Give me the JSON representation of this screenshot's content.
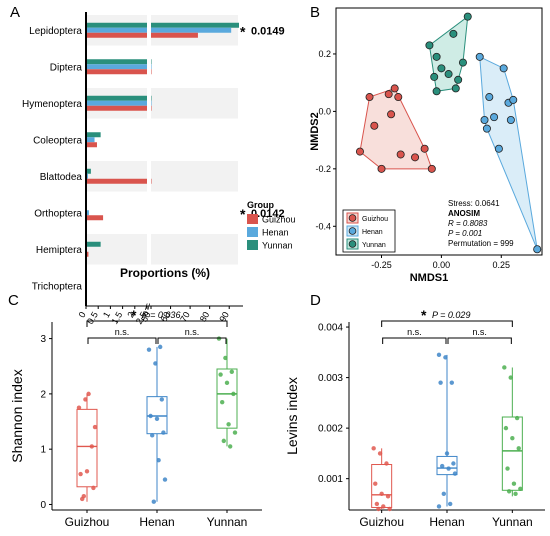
{
  "colors": {
    "guizhou": "#d9544d",
    "henan": "#5aa9dd",
    "yunnan": "#2a8f7c",
    "guizhou_box": "#e0584f",
    "henan_box": "#3f86c8",
    "yunnan_box": "#4caf50",
    "band": "#f2f2f2"
  },
  "panel_labels": [
    "A",
    "B",
    "C",
    "D"
  ],
  "chart_data": [
    {
      "panel": "A",
      "type": "bar",
      "orientation": "horizontal",
      "categories": [
        "Lepidoptera",
        "Diptera",
        "Hymenoptera",
        "Coleoptera",
        "Blattodea",
        "Orthoptera",
        "Hemiptera",
        "Trichoptera"
      ],
      "series": [
        {
          "name": "Guizhou",
          "values": [
            74,
            19,
            6,
            0.45,
            3.6,
            0.7,
            0.1,
            0.03
          ]
        },
        {
          "name": "Henan",
          "values": [
            91,
            20,
            7,
            0.35,
            0.08,
            0.12,
            0.02,
            0.01
          ]
        },
        {
          "name": "Yunnan",
          "values": [
            95,
            16,
            7,
            0.6,
            0.2,
            0.04,
            0.6,
            0.01
          ]
        }
      ],
      "xlabel": "Proportions (%)",
      "x_ticks_low": [
        "0",
        "0.5",
        "1",
        "1.5",
        "2",
        "2.5"
      ],
      "x_ticks_high": [
        "50",
        "60",
        "70",
        "80",
        "90"
      ],
      "x_break": [
        2.5,
        50
      ],
      "legend_title": "Group",
      "legend": [
        "Guizhou",
        "Henan",
        "Yunnan"
      ],
      "annotations": [
        {
          "category": "Lepidoptera",
          "text": "0.0149"
        },
        {
          "category": "Orthoptera",
          "text": "0.0142"
        }
      ],
      "annotation_symbol": "*"
    },
    {
      "panel": "B",
      "type": "scatter",
      "xlabel": "NMDS1",
      "ylabel": "NMDS2",
      "x_ticks": [
        "-0.25",
        "0.00",
        "0.25"
      ],
      "y_ticks": [
        "-0.4",
        "-0.2",
        "0.0",
        "0.2"
      ],
      "xlim": [
        -0.44,
        0.42
      ],
      "ylim": [
        -0.5,
        0.36
      ],
      "series": [
        {
          "name": "Guizhou",
          "points": [
            [
              -0.3,
              0.05
            ],
            [
              -0.22,
              0.06
            ],
            [
              -0.21,
              -0.01
            ],
            [
              -0.195,
              0.08
            ],
            [
              -0.17,
              -0.15
            ],
            [
              -0.28,
              -0.05
            ],
            [
              -0.25,
              -0.2
            ],
            [
              -0.11,
              -0.16
            ],
            [
              -0.07,
              -0.13
            ],
            [
              -0.04,
              -0.2
            ],
            [
              -0.34,
              -0.14
            ],
            [
              -0.18,
              0.05
            ]
          ]
        },
        {
          "name": "Henan",
          "points": [
            [
              0.16,
              0.19
            ],
            [
              0.26,
              0.15
            ],
            [
              0.2,
              0.05
            ],
            [
              0.22,
              -0.02
            ],
            [
              0.28,
              0.03
            ],
            [
              0.29,
              -0.03
            ],
            [
              0.3,
              0.04
            ],
            [
              0.19,
              -0.06
            ],
            [
              0.24,
              -0.13
            ],
            [
              0.18,
              -0.03
            ],
            [
              0.4,
              -0.48
            ]
          ]
        },
        {
          "name": "Yunnan",
          "points": [
            [
              -0.05,
              0.23
            ],
            [
              -0.02,
              0.19
            ],
            [
              0.05,
              0.27
            ],
            [
              0.11,
              0.33
            ],
            [
              0.09,
              0.17
            ],
            [
              0.0,
              0.15
            ],
            [
              0.03,
              0.13
            ],
            [
              0.06,
              0.08
            ],
            [
              -0.02,
              0.07
            ],
            [
              0.07,
              0.11
            ],
            [
              -0.03,
              0.12
            ]
          ]
        }
      ],
      "legend": [
        "Guizhou",
        "Henan",
        "Yunnan"
      ],
      "stats": [
        "Stress: 0.0641",
        "ANOSIM",
        "R = 0.8083",
        "P = 0.001",
        "Permutation = 999"
      ]
    },
    {
      "panel": "C",
      "type": "box",
      "categories": [
        "Guizhou",
        "Henan",
        "Yunnan"
      ],
      "ylabel": "Shannon index",
      "y_ticks": [
        "0",
        "1",
        "2",
        "3"
      ],
      "ylim": [
        -0.1,
        3.3
      ],
      "boxes": [
        {
          "name": "Guizhou",
          "q1": 0.32,
          "median": 1.05,
          "q3": 1.72,
          "min": 0.05,
          "max": 2.0
        },
        {
          "name": "Henan",
          "q1": 1.28,
          "median": 1.6,
          "q3": 1.95,
          "min": 0.05,
          "max": 2.85
        },
        {
          "name": "Yunnan",
          "q1": 1.38,
          "median": 2.0,
          "q3": 2.45,
          "min": 1.05,
          "max": 3.0
        }
      ],
      "points": [
        [
          1.75,
          1.9,
          1.05,
          0.55,
          0.6,
          0.3,
          0.1,
          2.0,
          1.4,
          0.15
        ],
        [
          2.8,
          2.55,
          1.9,
          1.6,
          1.55,
          1.3,
          1.25,
          0.8,
          0.45,
          0.05,
          2.85
        ],
        [
          3.0,
          2.65,
          2.4,
          2.35,
          2.2,
          2.0,
          1.85,
          1.45,
          1.3,
          1.15,
          1.05
        ]
      ],
      "significance": [
        {
          "text": "n.s.",
          "pair": [
            0,
            1
          ]
        },
        {
          "text": "n.s.",
          "pair": [
            1,
            2
          ]
        },
        {
          "star": "*",
          "text": "P = 0.036",
          "pair": [
            0,
            2
          ]
        }
      ]
    },
    {
      "panel": "D",
      "type": "box",
      "categories": [
        "Guizhou",
        "Henan",
        "Yunnan"
      ],
      "ylabel": "Levins index",
      "y_ticks": [
        "0.001",
        "0.002",
        "0.003",
        "0.004"
      ],
      "ylim": [
        0.00038,
        0.0041
      ],
      "boxes": [
        {
          "name": "Guizhou",
          "q1": 0.00043,
          "median": 0.00068,
          "q3": 0.00128,
          "min": 0.0004,
          "max": 0.0016
        },
        {
          "name": "Henan",
          "q1": 0.00108,
          "median": 0.00121,
          "q3": 0.00144,
          "min": 0.00045,
          "max": 0.00345
        },
        {
          "name": "Yunnan",
          "q1": 0.00077,
          "median": 0.00155,
          "q3": 0.00222,
          "min": 0.00065,
          "max": 0.0032
        }
      ],
      "points": [
        [
          0.0016,
          0.0015,
          0.0013,
          0.0009,
          0.0007,
          0.00065,
          0.0005,
          0.00045,
          0.0004,
          0.0004
        ],
        [
          0.00345,
          0.0034,
          0.0029,
          0.0029,
          0.0015,
          0.0013,
          0.00125,
          0.0012,
          0.0011,
          0.0007,
          0.0005,
          0.00045
        ],
        [
          0.0032,
          0.003,
          0.0022,
          0.002,
          0.0018,
          0.0016,
          0.0012,
          0.0009,
          0.0008,
          0.00075,
          0.0007
        ]
      ],
      "significance": [
        {
          "text": "n.s.",
          "pair": [
            0,
            1
          ]
        },
        {
          "text": "n.s.",
          "pair": [
            1,
            2
          ]
        },
        {
          "star": "*",
          "text": "P = 0.029",
          "pair": [
            0,
            2
          ]
        }
      ]
    }
  ]
}
